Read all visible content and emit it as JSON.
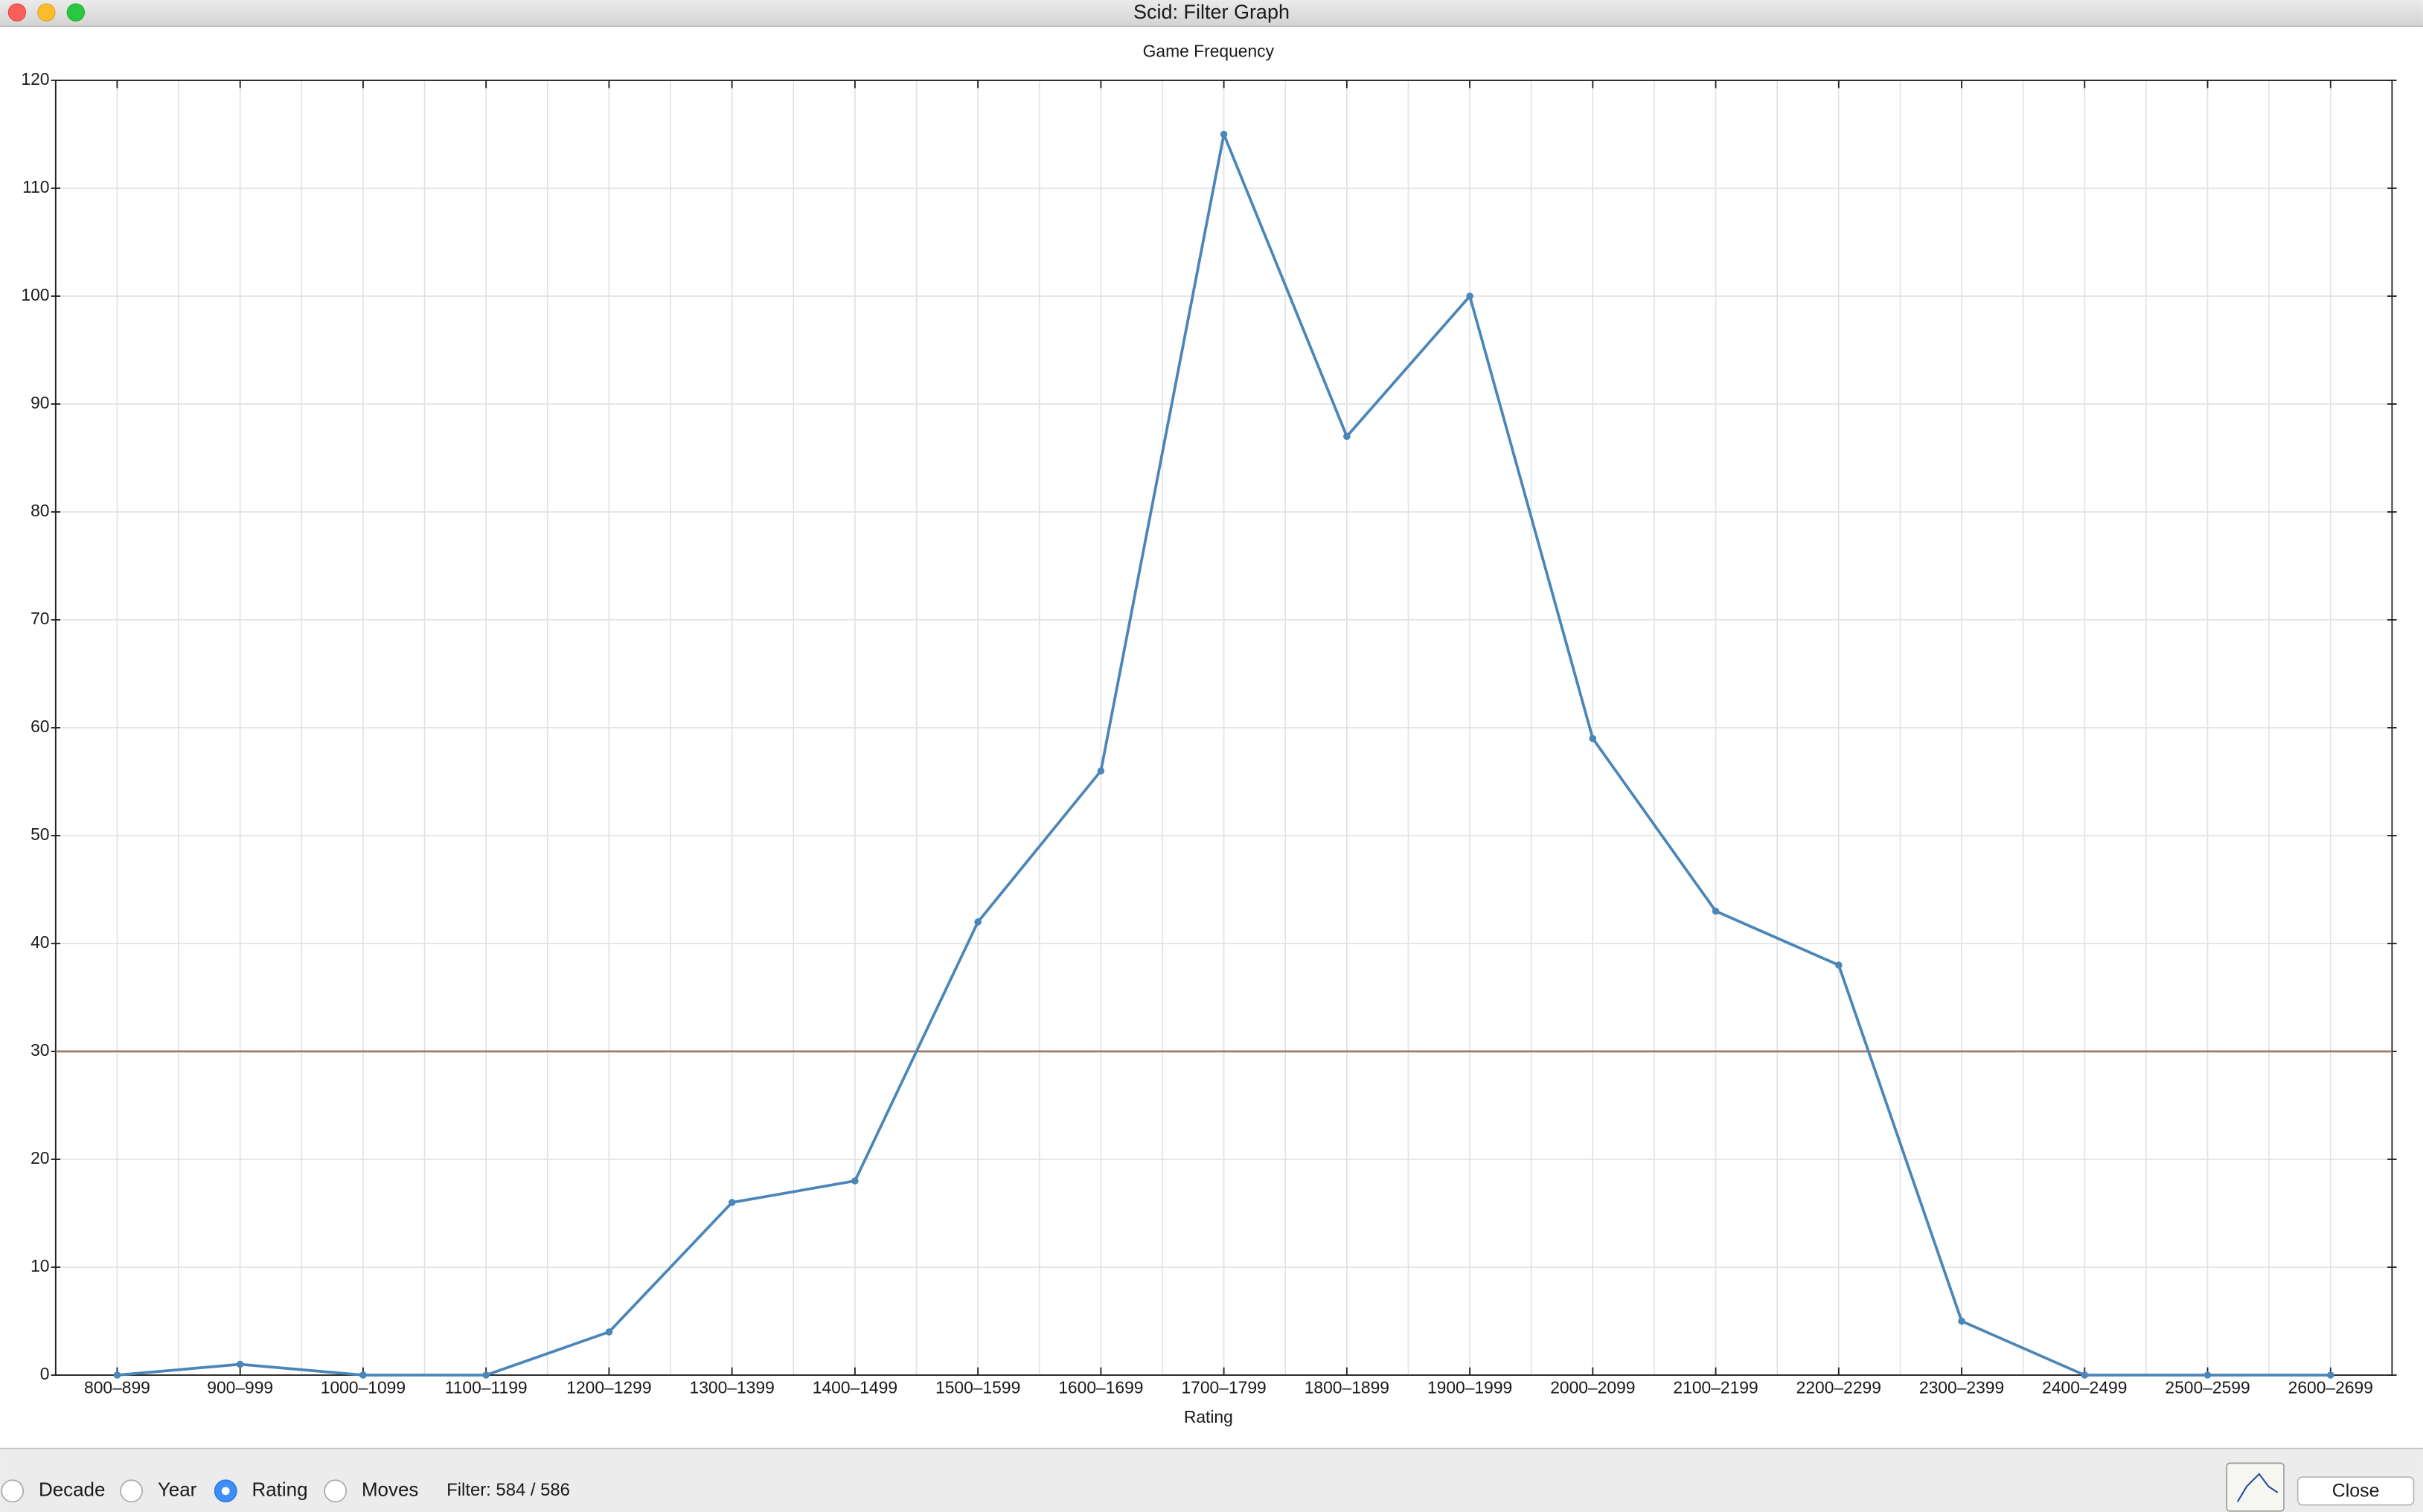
{
  "window_title": "Scid: Filter Graph",
  "chart_data": {
    "type": "line",
    "title": "Game Frequency",
    "x_label": "Rating",
    "categories": [
      "800–899",
      "900–999",
      "1000–1099",
      "1100–1199",
      "1200–1299",
      "1300–1399",
      "1400–1499",
      "1500–1599",
      "1600–1699",
      "1700–1799",
      "1800–1899",
      "1900–1999",
      "2000–2099",
      "2100–2199",
      "2200–2299",
      "2300–2399",
      "2400–2499",
      "2500–2599",
      "2600–2699"
    ],
    "series": [
      {
        "name": "Game Frequency",
        "color": "#4a86b8",
        "values": [
          0,
          1,
          0,
          0,
          4,
          16,
          18,
          42,
          56,
          115,
          87,
          100,
          59,
          43,
          38,
          5,
          0,
          0,
          0
        ]
      }
    ],
    "reference_line": {
      "value": 30,
      "color": "#a0776a"
    },
    "ylim": [
      0,
      120
    ],
    "yticks": [
      0,
      10,
      20,
      30,
      40,
      50,
      60,
      70,
      80,
      90,
      100,
      110,
      120
    ],
    "grid": true
  },
  "controls": {
    "options": [
      "Decade",
      "Year",
      "Rating",
      "Moves"
    ],
    "selected_index": 2,
    "filter_text": "Filter: 584 / 586",
    "close_label": "Close"
  }
}
